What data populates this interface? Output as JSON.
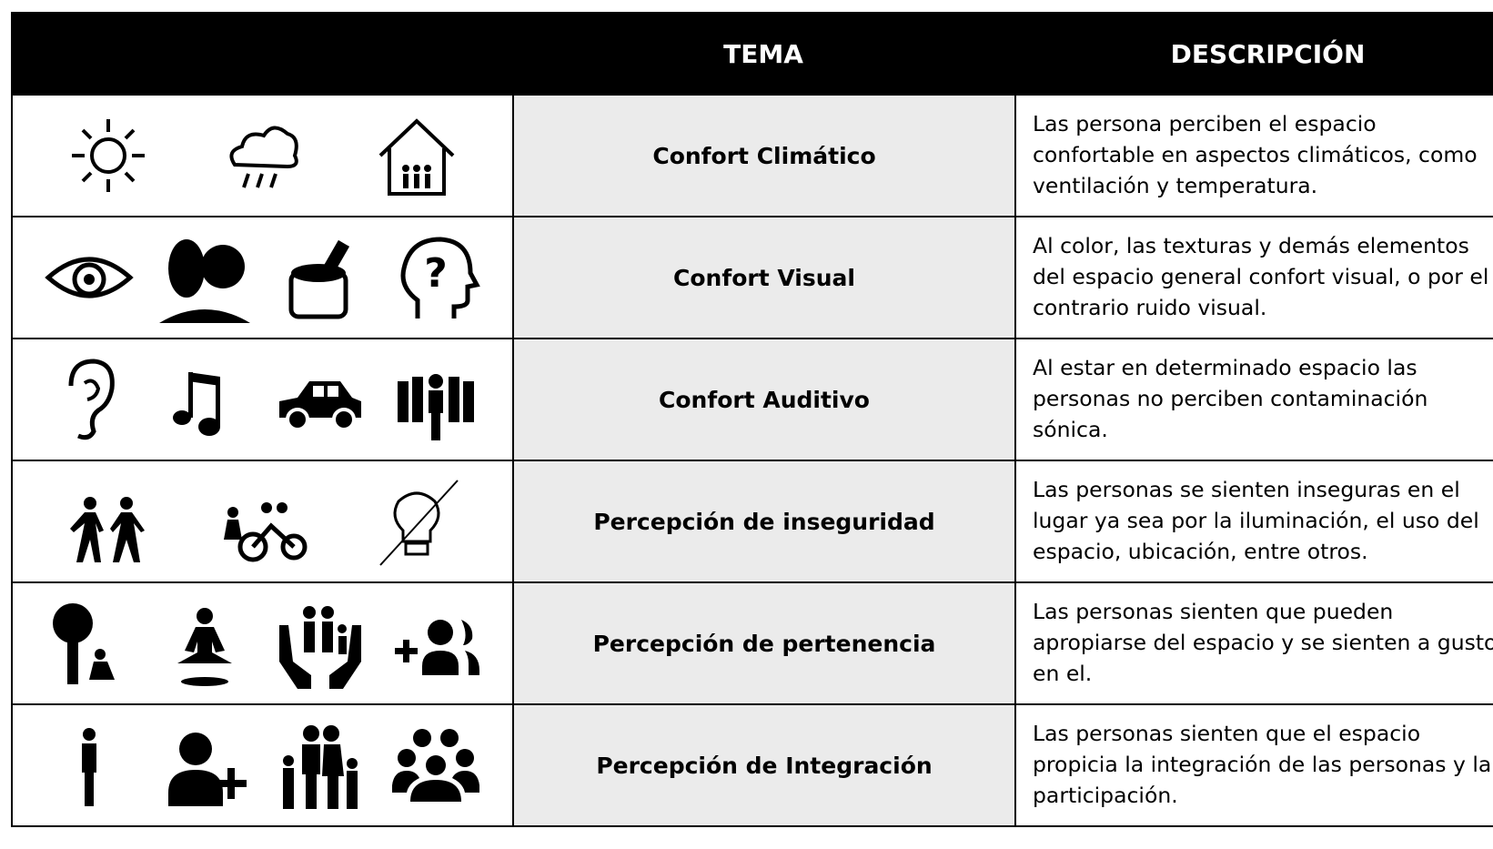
{
  "header": {
    "columns": [
      "TEMA",
      "DESCRIPCIÓN"
    ]
  },
  "rows": [
    {
      "tema": "Confort Climático",
      "description": [
        "Las persona perciben el espacio",
        "confortable en aspectos climáticos, como",
        "ventilación y temperatura."
      ]
    },
    {
      "tema": "Confort Visual",
      "description": [
        "Al color, las texturas y demás elementos",
        "del espacio general confort visual, o por el",
        "contrario ruido visual."
      ]
    },
    {
      "tema": "Confort Auditivo",
      "description": [
        "Al estar en determinado espacio las",
        "personas no perciben contaminación",
        "sónica."
      ]
    },
    {
      "tema": "Percepción de inseguridad",
      "description": [
        "Las personas se sienten inseguras en el",
        "lugar ya sea por la iluminación, el uso del",
        "espacio, ubicación, entre otros."
      ]
    },
    {
      "tema": "Percepción de pertenencia",
      "description": [
        "Las personas sienten que pueden",
        "apropiarse del espacio y se sienten a gusto",
        "en el."
      ]
    },
    {
      "tema": "Percepción de Integración",
      "description": [
        "Las personas sienten que el espacio",
        "propicia la integración de las personas y la",
        "participación."
      ]
    }
  ]
}
